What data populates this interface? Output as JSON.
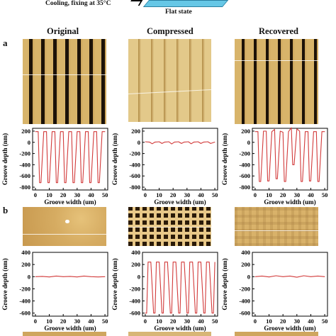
{
  "top": {
    "caption": "Cooling, fixing at 35°C",
    "flat_label": "Flat state"
  },
  "columns": [
    "Original",
    "Compressed",
    "Recovered"
  ],
  "panels": [
    "a",
    "b"
  ],
  "colors": {
    "trace": "#d23a3a",
    "afm_light": "#d8b46a",
    "afm_dark": "#1c1208",
    "shelf": "#66c7e6"
  },
  "chart_data": [
    {
      "type": "line",
      "panel": "a",
      "column": "Original",
      "xlabel": "Groove width (um)",
      "ylabel": "Groove depth (nm)",
      "xlim": [
        -2,
        52
      ],
      "ylim": [
        -850,
        250
      ],
      "xticks": [
        "0",
        "10",
        "20",
        "30",
        "40",
        "50"
      ],
      "yticks": [
        "200",
        "0",
        "-200",
        "-400",
        "-600",
        "-800"
      ],
      "x": [
        0,
        2,
        3,
        4,
        6,
        8,
        9,
        10,
        12,
        14,
        15,
        16,
        18,
        20,
        21,
        22,
        24,
        26,
        27,
        28,
        30,
        32,
        33,
        34,
        36,
        38,
        39,
        40,
        42,
        44,
        45,
        46,
        48,
        50
      ],
      "y": [
        190,
        190,
        -720,
        -720,
        190,
        190,
        -720,
        -720,
        190,
        190,
        -720,
        -720,
        190,
        190,
        -720,
        -720,
        190,
        190,
        -720,
        -720,
        190,
        190,
        -720,
        -720,
        190,
        190,
        -720,
        -720,
        190,
        190,
        -720,
        -720,
        190,
        190
      ]
    },
    {
      "type": "line",
      "panel": "a",
      "column": "Compressed",
      "xlabel": "Groove width (um)",
      "ylabel": "Groove depth (nm)",
      "xlim": [
        -2,
        52
      ],
      "ylim": [
        -850,
        250
      ],
      "xticks": [
        "0",
        "10",
        "20",
        "30",
        "40",
        "50"
      ],
      "yticks": [
        "200",
        "0",
        "-200",
        "-400",
        "-600",
        "-800"
      ],
      "x": [
        0,
        3,
        5,
        7,
        10,
        12,
        14,
        17,
        19,
        21,
        24,
        26,
        28,
        31,
        33,
        35,
        38,
        40,
        42,
        45,
        47,
        50
      ],
      "y": [
        10,
        5,
        -25,
        5,
        10,
        -20,
        5,
        10,
        -30,
        5,
        10,
        -20,
        5,
        10,
        -25,
        5,
        10,
        -20,
        5,
        10,
        -20,
        5
      ]
    },
    {
      "type": "line",
      "panel": "a",
      "column": "Recovered",
      "xlabel": "Groove width (um)",
      "ylabel": "Groove depth (nm)",
      "xlim": [
        -2,
        52
      ],
      "ylim": [
        -850,
        250
      ],
      "xticks": [
        "0",
        "10",
        "20",
        "30",
        "40",
        "50"
      ],
      "yticks": [
        "200",
        "0",
        "-200",
        "-400",
        "-600",
        "-800"
      ],
      "x": [
        0,
        2,
        3,
        4,
        6,
        8,
        9,
        10,
        12,
        14,
        15,
        16,
        18,
        20,
        21,
        22,
        24,
        26,
        27,
        28,
        30,
        32,
        33,
        34,
        36,
        38,
        39,
        40,
        42,
        44,
        45,
        46,
        48,
        50
      ],
      "y": [
        190,
        190,
        -700,
        -700,
        200,
        200,
        -690,
        -690,
        190,
        230,
        -650,
        -650,
        200,
        180,
        -700,
        -700,
        190,
        260,
        -400,
        -400,
        240,
        200,
        -700,
        -700,
        190,
        190,
        -690,
        -690,
        190,
        190,
        -700,
        -700,
        190,
        190
      ]
    },
    {
      "type": "line",
      "panel": "b",
      "column": "Original",
      "xlabel": "Groove width (um)",
      "ylabel": "Groove depth (nm)",
      "xlim": [
        -2,
        52
      ],
      "ylim": [
        -650,
        400
      ],
      "xticks": [
        "0",
        "10",
        "20",
        "30",
        "40",
        "50"
      ],
      "yticks": [
        "400",
        "200",
        "0",
        "-200",
        "-400",
        "-600"
      ],
      "x": [
        0,
        5,
        10,
        15,
        20,
        25,
        30,
        35,
        40,
        45,
        50
      ],
      "y": [
        0,
        5,
        -5,
        10,
        0,
        5,
        -5,
        10,
        0,
        -5,
        0
      ]
    },
    {
      "type": "line",
      "panel": "b",
      "column": "Compressed",
      "xlabel": "Groove width (um)",
      "ylabel": "Groove depth (nm)",
      "xlim": [
        -2,
        52
      ],
      "ylim": [
        -650,
        400
      ],
      "xticks": [
        "0",
        "10",
        "20",
        "30",
        "40",
        "50"
      ],
      "yticks": [
        "400",
        "200",
        "0",
        "-200",
        "-400",
        "-600"
      ],
      "x": [
        0,
        1,
        2,
        4,
        6,
        7,
        8,
        10,
        12,
        13,
        14,
        16,
        18,
        19,
        20,
        22,
        24,
        25,
        26,
        28,
        30,
        31,
        32,
        34,
        36,
        37,
        38,
        40,
        42,
        43,
        44,
        46,
        48,
        49,
        50
      ],
      "y": [
        -600,
        -600,
        240,
        240,
        -600,
        -600,
        240,
        240,
        -600,
        -600,
        240,
        240,
        -600,
        -600,
        240,
        240,
        -600,
        -600,
        240,
        240,
        -600,
        -600,
        240,
        240,
        -600,
        -600,
        240,
        240,
        -600,
        -600,
        240,
        240,
        -600,
        -600,
        240
      ]
    },
    {
      "type": "line",
      "panel": "b",
      "column": "Recovered",
      "xlabel": "Groove width (um)",
      "ylabel": "Groove depth (nm)",
      "xlim": [
        -2,
        52
      ],
      "ylim": [
        -650,
        400
      ],
      "xticks": [
        "0",
        "10",
        "20",
        "30",
        "40",
        "50"
      ],
      "yticks": [
        "400",
        "200",
        "0",
        "-200",
        "-400",
        "-600"
      ],
      "x": [
        0,
        5,
        10,
        15,
        20,
        25,
        30,
        35,
        40,
        45,
        50
      ],
      "y": [
        0,
        10,
        -5,
        15,
        0,
        10,
        -10,
        15,
        0,
        10,
        0
      ]
    }
  ]
}
